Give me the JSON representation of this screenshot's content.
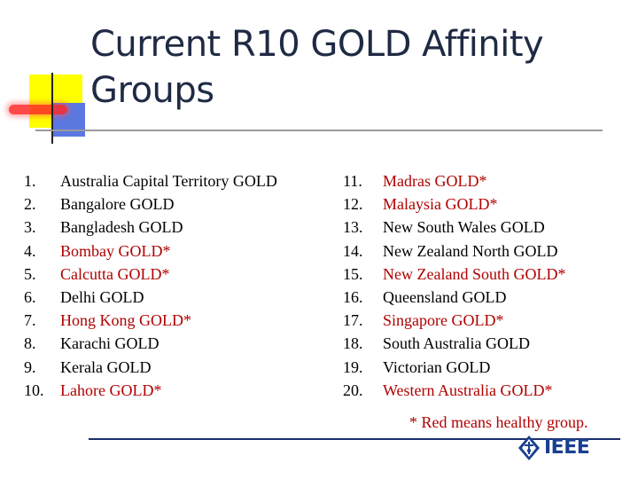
{
  "slide": {
    "title": "Current R10 GOLD Affinity Groups",
    "left_items": [
      {
        "num": "1.",
        "label": "Australia Capital Territory GOLD",
        "healthy": false
      },
      {
        "num": "2.",
        "label": "Bangalore GOLD",
        "healthy": false
      },
      {
        "num": "3.",
        "label": "Bangladesh GOLD",
        "healthy": false
      },
      {
        "num": "4.",
        "label": "Bombay GOLD*",
        "healthy": true
      },
      {
        "num": "5.",
        "label": "Calcutta GOLD*",
        "healthy": true
      },
      {
        "num": "6.",
        "label": "Delhi GOLD",
        "healthy": false
      },
      {
        "num": "7.",
        "label": "Hong Kong GOLD*",
        "healthy": true
      },
      {
        "num": "8.",
        "label": "Karachi GOLD",
        "healthy": false
      },
      {
        "num": "9.",
        "label": "Kerala GOLD",
        "healthy": false
      },
      {
        "num": "10.",
        "label": "Lahore GOLD*",
        "healthy": true
      }
    ],
    "right_items": [
      {
        "num": "11.",
        "label": "Madras GOLD*",
        "healthy": true
      },
      {
        "num": "12.",
        "label": "Malaysia GOLD*",
        "healthy": true
      },
      {
        "num": "13.",
        "label": "New South Wales GOLD",
        "healthy": false
      },
      {
        "num": "14.",
        "label": "New Zealand North GOLD",
        "healthy": false
      },
      {
        "num": "15.",
        "label": "New Zealand South GOLD*",
        "healthy": true
      },
      {
        "num": "16.",
        "label": "Queensland GOLD",
        "healthy": false
      },
      {
        "num": "17.",
        "label": "Singapore GOLD*",
        "healthy": true
      },
      {
        "num": "18.",
        "label": "South Australia GOLD",
        "healthy": false
      },
      {
        "num": "19.",
        "label": "Victorian GOLD",
        "healthy": false
      },
      {
        "num": "20.",
        "label": "Western Australia GOLD*",
        "healthy": true
      }
    ],
    "note": "* Red means healthy group.",
    "logo_text": "IEEE",
    "colors": {
      "healthy": "#b00000",
      "normal": "#000000",
      "title": "#1f2a44",
      "logo": "#1a3f8f"
    }
  }
}
